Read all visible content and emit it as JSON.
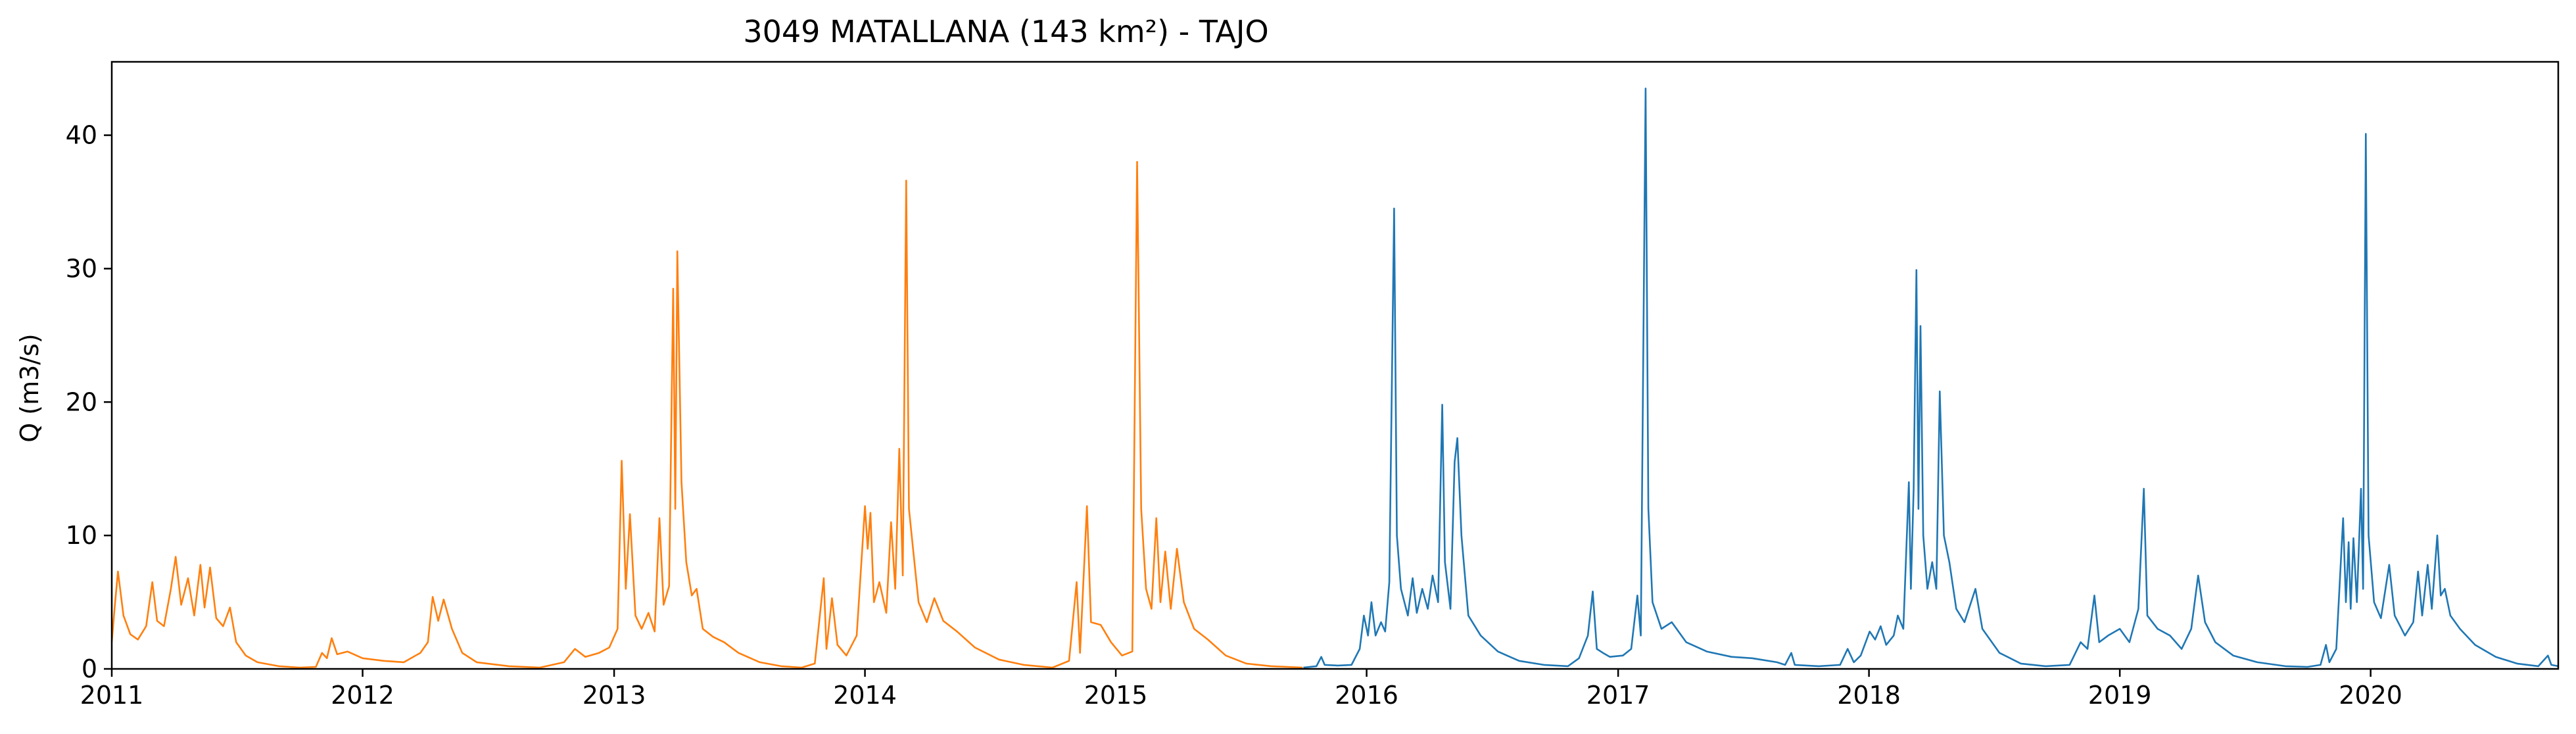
{
  "chart_data": {
    "type": "line",
    "title": "3049 MATALLANA (143 km²) - TAJO",
    "xlabel": "",
    "ylabel": "Q (m3/s)",
    "xlim": [
      "2011-01-01",
      "2020-09-30"
    ],
    "ylim": [
      0,
      45.5
    ],
    "grid": false,
    "x_ticks": [
      "2011",
      "2012",
      "2013",
      "2014",
      "2015",
      "2016",
      "2017",
      "2018",
      "2019",
      "2020"
    ],
    "y_ticks": [
      "0",
      "10",
      "20",
      "30",
      "40"
    ],
    "series": [
      {
        "color": "#ff7f0e",
        "points": [
          [
            "2011-01-01",
            2.0
          ],
          [
            "2011-01-05",
            4.5
          ],
          [
            "2011-01-10",
            7.3
          ],
          [
            "2011-01-18",
            4.0
          ],
          [
            "2011-01-28",
            2.6
          ],
          [
            "2011-02-08",
            2.2
          ],
          [
            "2011-02-20",
            3.2
          ],
          [
            "2011-03-01",
            6.5
          ],
          [
            "2011-03-08",
            3.6
          ],
          [
            "2011-03-18",
            3.2
          ],
          [
            "2011-03-28",
            6.0
          ],
          [
            "2011-04-04",
            8.4
          ],
          [
            "2011-04-12",
            4.8
          ],
          [
            "2011-04-22",
            6.8
          ],
          [
            "2011-05-01",
            4.0
          ],
          [
            "2011-05-10",
            7.8
          ],
          [
            "2011-05-16",
            4.6
          ],
          [
            "2011-05-24",
            7.6
          ],
          [
            "2011-06-02",
            3.8
          ],
          [
            "2011-06-12",
            3.2
          ],
          [
            "2011-06-22",
            4.6
          ],
          [
            "2011-07-01",
            2.0
          ],
          [
            "2011-07-15",
            1.0
          ],
          [
            "2011-08-01",
            0.5
          ],
          [
            "2011-09-01",
            0.2
          ],
          [
            "2011-10-01",
            0.1
          ],
          [
            "2011-10-25",
            0.15
          ],
          [
            "2011-11-03",
            1.2
          ],
          [
            "2011-11-10",
            0.8
          ],
          [
            "2011-11-17",
            2.3
          ],
          [
            "2011-11-25",
            1.1
          ],
          [
            "2011-12-10",
            1.3
          ],
          [
            "2012-01-01",
            0.8
          ],
          [
            "2012-02-01",
            0.6
          ],
          [
            "2012-03-01",
            0.5
          ],
          [
            "2012-03-25",
            1.2
          ],
          [
            "2012-04-05",
            2.0
          ],
          [
            "2012-04-12",
            5.4
          ],
          [
            "2012-04-20",
            3.6
          ],
          [
            "2012-04-28",
            5.2
          ],
          [
            "2012-05-10",
            3.0
          ],
          [
            "2012-05-25",
            1.2
          ],
          [
            "2012-06-15",
            0.5
          ],
          [
            "2012-08-01",
            0.2
          ],
          [
            "2012-09-15",
            0.1
          ],
          [
            "2012-10-20",
            0.5
          ],
          [
            "2012-11-05",
            1.5
          ],
          [
            "2012-11-20",
            0.9
          ],
          [
            "2012-12-10",
            1.2
          ],
          [
            "2012-12-25",
            1.6
          ],
          [
            "2013-01-06",
            3.0
          ],
          [
            "2013-01-12",
            15.6
          ],
          [
            "2013-01-18",
            6.0
          ],
          [
            "2013-01-24",
            11.6
          ],
          [
            "2013-02-01",
            4.0
          ],
          [
            "2013-02-10",
            3.0
          ],
          [
            "2013-02-20",
            4.2
          ],
          [
            "2013-03-01",
            2.8
          ],
          [
            "2013-03-08",
            11.3
          ],
          [
            "2013-03-14",
            4.8
          ],
          [
            "2013-03-22",
            6.2
          ],
          [
            "2013-03-28",
            28.5
          ],
          [
            "2013-03-31",
            12.0
          ],
          [
            "2013-04-03",
            31.3
          ],
          [
            "2013-04-09",
            14.0
          ],
          [
            "2013-04-16",
            8.0
          ],
          [
            "2013-04-24",
            5.5
          ],
          [
            "2013-05-01",
            6.0
          ],
          [
            "2013-05-10",
            3.0
          ],
          [
            "2013-05-25",
            2.4
          ],
          [
            "2013-06-10",
            2.0
          ],
          [
            "2013-07-01",
            1.2
          ],
          [
            "2013-08-01",
            0.5
          ],
          [
            "2013-09-01",
            0.2
          ],
          [
            "2013-10-01",
            0.1
          ],
          [
            "2013-10-20",
            0.4
          ],
          [
            "2013-11-02",
            6.8
          ],
          [
            "2013-11-06",
            1.5
          ],
          [
            "2013-11-14",
            5.3
          ],
          [
            "2013-11-22",
            1.8
          ],
          [
            "2013-12-05",
            1.0
          ],
          [
            "2013-12-20",
            2.5
          ],
          [
            "2014-01-01",
            12.2
          ],
          [
            "2014-01-05",
            9.0
          ],
          [
            "2014-01-09",
            11.7
          ],
          [
            "2014-01-14",
            5.0
          ],
          [
            "2014-01-22",
            6.5
          ],
          [
            "2014-02-01",
            4.2
          ],
          [
            "2014-02-08",
            11.0
          ],
          [
            "2014-02-14",
            6.0
          ],
          [
            "2014-02-20",
            16.5
          ],
          [
            "2014-02-25",
            7.0
          ],
          [
            "2014-03-02",
            36.6
          ],
          [
            "2014-03-06",
            12.0
          ],
          [
            "2014-03-12",
            9.0
          ],
          [
            "2014-03-20",
            5.0
          ],
          [
            "2014-04-01",
            3.5
          ],
          [
            "2014-04-12",
            5.3
          ],
          [
            "2014-04-25",
            3.6
          ],
          [
            "2014-05-15",
            2.8
          ],
          [
            "2014-06-10",
            1.6
          ],
          [
            "2014-07-15",
            0.7
          ],
          [
            "2014-08-20",
            0.3
          ],
          [
            "2014-10-01",
            0.1
          ],
          [
            "2014-10-25",
            0.6
          ],
          [
            "2014-11-05",
            6.5
          ],
          [
            "2014-11-10",
            1.2
          ],
          [
            "2014-11-20",
            12.2
          ],
          [
            "2014-11-26",
            3.5
          ],
          [
            "2014-12-10",
            3.3
          ],
          [
            "2014-12-25",
            2.0
          ],
          [
            "2015-01-10",
            1.0
          ],
          [
            "2015-01-25",
            1.3
          ],
          [
            "2015-02-01",
            38.0
          ],
          [
            "2015-02-07",
            12.0
          ],
          [
            "2015-02-14",
            6.0
          ],
          [
            "2015-02-22",
            4.5
          ],
          [
            "2015-03-01",
            11.3
          ],
          [
            "2015-03-07",
            5.0
          ],
          [
            "2015-03-14",
            8.8
          ],
          [
            "2015-03-22",
            4.5
          ],
          [
            "2015-03-31",
            9.0
          ],
          [
            "2015-04-10",
            5.0
          ],
          [
            "2015-04-25",
            3.0
          ],
          [
            "2015-05-15",
            2.2
          ],
          [
            "2015-06-10",
            1.0
          ],
          [
            "2015-07-10",
            0.4
          ],
          [
            "2015-08-15",
            0.2
          ],
          [
            "2015-09-30",
            0.1
          ]
        ]
      },
      {
        "color": "#1f77b4",
        "points": [
          [
            "2015-10-01",
            0.1
          ],
          [
            "2015-10-20",
            0.2
          ],
          [
            "2015-10-27",
            0.9
          ],
          [
            "2015-11-01",
            0.3
          ],
          [
            "2015-11-20",
            0.25
          ],
          [
            "2015-12-10",
            0.3
          ],
          [
            "2015-12-22",
            1.5
          ],
          [
            "2015-12-28",
            4.0
          ],
          [
            "2016-01-03",
            2.5
          ],
          [
            "2016-01-08",
            5.0
          ],
          [
            "2016-01-14",
            2.5
          ],
          [
            "2016-01-22",
            3.5
          ],
          [
            "2016-01-28",
            2.8
          ],
          [
            "2016-02-03",
            6.5
          ],
          [
            "2016-02-10",
            34.5
          ],
          [
            "2016-02-14",
            10.0
          ],
          [
            "2016-02-20",
            6.0
          ],
          [
            "2016-03-01",
            4.0
          ],
          [
            "2016-03-08",
            6.8
          ],
          [
            "2016-03-14",
            4.2
          ],
          [
            "2016-03-22",
            6.0
          ],
          [
            "2016-03-30",
            4.5
          ],
          [
            "2016-04-06",
            7.0
          ],
          [
            "2016-04-14",
            5.0
          ],
          [
            "2016-04-20",
            19.8
          ],
          [
            "2016-04-24",
            8.0
          ],
          [
            "2016-05-02",
            4.5
          ],
          [
            "2016-05-08",
            15.5
          ],
          [
            "2016-05-12",
            17.3
          ],
          [
            "2016-05-18",
            10.0
          ],
          [
            "2016-05-28",
            4.0
          ],
          [
            "2016-06-15",
            2.5
          ],
          [
            "2016-07-10",
            1.3
          ],
          [
            "2016-08-10",
            0.6
          ],
          [
            "2016-09-15",
            0.3
          ],
          [
            "2016-10-20",
            0.2
          ],
          [
            "2016-11-05",
            0.8
          ],
          [
            "2016-11-18",
            2.5
          ],
          [
            "2016-11-25",
            5.8
          ],
          [
            "2016-12-01",
            1.5
          ],
          [
            "2016-12-10",
            1.2
          ],
          [
            "2016-12-20",
            0.9
          ],
          [
            "2017-01-08",
            1.0
          ],
          [
            "2017-01-20",
            1.5
          ],
          [
            "2017-01-29",
            5.5
          ],
          [
            "2017-02-03",
            2.5
          ],
          [
            "2017-02-10",
            43.5
          ],
          [
            "2017-02-14",
            12.0
          ],
          [
            "2017-02-20",
            5.0
          ],
          [
            "2017-03-05",
            3.0
          ],
          [
            "2017-03-20",
            3.5
          ],
          [
            "2017-04-10",
            2.0
          ],
          [
            "2017-05-10",
            1.3
          ],
          [
            "2017-06-15",
            0.9
          ],
          [
            "2017-07-15",
            0.8
          ],
          [
            "2017-08-20",
            0.5
          ],
          [
            "2017-09-01",
            0.3
          ],
          [
            "2017-09-10",
            1.2
          ],
          [
            "2017-09-15",
            0.3
          ],
          [
            "2017-10-20",
            0.2
          ],
          [
            "2017-11-20",
            0.3
          ],
          [
            "2017-12-01",
            1.5
          ],
          [
            "2017-12-10",
            0.5
          ],
          [
            "2017-12-20",
            1.0
          ],
          [
            "2018-01-02",
            2.8
          ],
          [
            "2018-01-10",
            2.2
          ],
          [
            "2018-01-18",
            3.2
          ],
          [
            "2018-01-26",
            1.8
          ],
          [
            "2018-02-06",
            2.5
          ],
          [
            "2018-02-12",
            4.0
          ],
          [
            "2018-02-20",
            3.0
          ],
          [
            "2018-02-28",
            14.0
          ],
          [
            "2018-03-03",
            6.0
          ],
          [
            "2018-03-07",
            13.5
          ],
          [
            "2018-03-11",
            29.9
          ],
          [
            "2018-03-14",
            12.0
          ],
          [
            "2018-03-17",
            25.7
          ],
          [
            "2018-03-21",
            10.0
          ],
          [
            "2018-03-27",
            6.0
          ],
          [
            "2018-04-03",
            8.0
          ],
          [
            "2018-04-09",
            6.0
          ],
          [
            "2018-04-14",
            20.8
          ],
          [
            "2018-04-20",
            10.0
          ],
          [
            "2018-04-28",
            8.0
          ],
          [
            "2018-05-08",
            4.5
          ],
          [
            "2018-05-20",
            3.5
          ],
          [
            "2018-06-05",
            6.0
          ],
          [
            "2018-06-15",
            3.0
          ],
          [
            "2018-07-10",
            1.2
          ],
          [
            "2018-08-10",
            0.4
          ],
          [
            "2018-09-15",
            0.2
          ],
          [
            "2018-10-20",
            0.3
          ],
          [
            "2018-11-05",
            2.0
          ],
          [
            "2018-11-15",
            1.5
          ],
          [
            "2018-11-25",
            5.5
          ],
          [
            "2018-12-02",
            2.0
          ],
          [
            "2018-12-15",
            2.5
          ],
          [
            "2019-01-01",
            3.0
          ],
          [
            "2019-01-15",
            2.0
          ],
          [
            "2019-01-28",
            4.5
          ],
          [
            "2019-02-05",
            13.5
          ],
          [
            "2019-02-10",
            4.0
          ],
          [
            "2019-02-25",
            3.0
          ],
          [
            "2019-03-15",
            2.5
          ],
          [
            "2019-04-01",
            1.5
          ],
          [
            "2019-04-15",
            3.0
          ],
          [
            "2019-04-25",
            7.0
          ],
          [
            "2019-05-05",
            3.5
          ],
          [
            "2019-05-20",
            2.0
          ],
          [
            "2019-06-15",
            1.0
          ],
          [
            "2019-07-20",
            0.5
          ],
          [
            "2019-08-30",
            0.2
          ],
          [
            "2019-10-01",
            0.15
          ],
          [
            "2019-10-20",
            0.3
          ],
          [
            "2019-10-28",
            1.8
          ],
          [
            "2019-11-02",
            0.5
          ],
          [
            "2019-11-12",
            1.5
          ],
          [
            "2019-11-22",
            11.3
          ],
          [
            "2019-11-26",
            5.0
          ],
          [
            "2019-11-30",
            9.5
          ],
          [
            "2019-12-03",
            4.5
          ],
          [
            "2019-12-07",
            9.8
          ],
          [
            "2019-12-12",
            5.0
          ],
          [
            "2019-12-18",
            13.5
          ],
          [
            "2019-12-21",
            6.0
          ],
          [
            "2019-12-25",
            40.1
          ],
          [
            "2019-12-29",
            10.0
          ],
          [
            "2020-01-06",
            5.0
          ],
          [
            "2020-01-16",
            3.8
          ],
          [
            "2020-01-28",
            7.8
          ],
          [
            "2020-02-05",
            4.0
          ],
          [
            "2020-02-20",
            2.5
          ],
          [
            "2020-03-03",
            3.5
          ],
          [
            "2020-03-10",
            7.3
          ],
          [
            "2020-03-16",
            4.0
          ],
          [
            "2020-03-24",
            7.8
          ],
          [
            "2020-03-30",
            4.5
          ],
          [
            "2020-04-07",
            10.0
          ],
          [
            "2020-04-12",
            5.5
          ],
          [
            "2020-04-18",
            6.0
          ],
          [
            "2020-04-26",
            4.0
          ],
          [
            "2020-05-10",
            3.0
          ],
          [
            "2020-06-01",
            1.8
          ],
          [
            "2020-07-01",
            0.9
          ],
          [
            "2020-08-01",
            0.4
          ],
          [
            "2020-09-01",
            0.2
          ],
          [
            "2020-09-15",
            1.0
          ],
          [
            "2020-09-20",
            0.3
          ],
          [
            "2020-09-30",
            0.2
          ]
        ]
      }
    ]
  }
}
